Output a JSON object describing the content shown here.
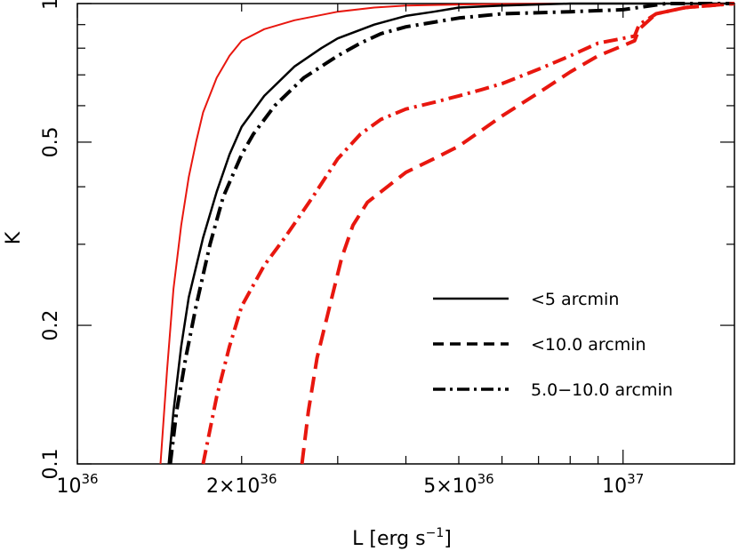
{
  "chart_data": {
    "type": "line",
    "xlabel_base": "L [erg s",
    "xlabel_exp": "−1",
    "xlabel_close": "]",
    "ylabel": "K",
    "xscale": "log",
    "yscale": "log",
    "xlim": [
      1e+36,
      1.6e+37
    ],
    "ylim": [
      0.1,
      1.0
    ],
    "grid": false,
    "legend_position": "lower-right",
    "x_ticks": [
      {
        "value": 1e+36,
        "mant": "10",
        "exp": "36"
      },
      {
        "value": 2e+36,
        "mant": "2×10",
        "exp": "36"
      },
      {
        "value": 5e+36,
        "mant": "5×10",
        "exp": "36"
      },
      {
        "value": 1e+37,
        "mant": "10",
        "exp": "37"
      }
    ],
    "y_ticks": [
      {
        "value": 0.1,
        "label": "0.1"
      },
      {
        "value": 0.2,
        "label": "0.2"
      },
      {
        "value": 0.5,
        "label": "0.5"
      },
      {
        "value": 1.0,
        "label": "1"
      }
    ],
    "legend": [
      {
        "label": "<5 arcmin",
        "dash": "solid"
      },
      {
        "label": "<10.0 arcmin",
        "dash": "dashed"
      },
      {
        "label": "5.0−10.0 arcmin",
        "dash": "dashdot"
      }
    ],
    "series": [
      {
        "color": "#e8170f",
        "dash": "solid",
        "width": 2,
        "x": [
          1.42e+36,
          1.46e+36,
          1.5e+36,
          1.55e+36,
          1.6e+36,
          1.65e+36,
          1.7e+36,
          1.8e+36,
          1.9e+36,
          2e+36,
          2.2e+36,
          2.5e+36,
          3e+36,
          3.5e+36,
          4e+36,
          5e+36,
          6e+36,
          8e+36,
          1e+37,
          1.6e+37
        ],
        "y": [
          0.1,
          0.16,
          0.24,
          0.33,
          0.42,
          0.5,
          0.58,
          0.69,
          0.77,
          0.83,
          0.88,
          0.92,
          0.96,
          0.98,
          0.99,
          0.995,
          0.998,
          1.0,
          1.0,
          1.0
        ]
      },
      {
        "color": "#000000",
        "dash": "solid",
        "width": 2.5,
        "x": [
          1.47e+36,
          1.5e+36,
          1.55e+36,
          1.6e+36,
          1.7e+36,
          1.8e+36,
          1.9e+36,
          2e+36,
          2.2e+36,
          2.5e+36,
          2.8e+36,
          3e+36,
          3.5e+36,
          4e+36,
          4.5e+36,
          5e+36,
          6e+36,
          8e+36,
          1e+37,
          1.6e+37
        ],
        "y": [
          0.1,
          0.13,
          0.18,
          0.23,
          0.31,
          0.39,
          0.47,
          0.54,
          0.63,
          0.73,
          0.8,
          0.84,
          0.9,
          0.94,
          0.96,
          0.98,
          0.99,
          1.0,
          1.0,
          1.0
        ]
      },
      {
        "color": "#000000",
        "dash": "dashdot",
        "width": 4,
        "x": [
          1.48e+36,
          1.52e+36,
          1.58e+36,
          1.65e+36,
          1.75e+36,
          1.85e+36,
          2e+36,
          2.1e+36,
          2.3e+36,
          2.6e+36,
          3e+36,
          3.3e+36,
          3.6e+36,
          4e+36,
          5e+36,
          6e+36,
          8e+36,
          1e+37,
          1.2e+37,
          1.6e+37
        ],
        "y": [
          0.1,
          0.13,
          0.17,
          0.22,
          0.3,
          0.38,
          0.47,
          0.52,
          0.6,
          0.69,
          0.77,
          0.82,
          0.86,
          0.89,
          0.93,
          0.95,
          0.96,
          0.97,
          1.0,
          1.0
        ]
      },
      {
        "color": "#e8170f",
        "dash": "dashdot",
        "width": 4,
        "x": [
          1.7e+36,
          1.8e+36,
          1.9e+36,
          2e+36,
          2.2e+36,
          2.4e+36,
          2.7e+36,
          3e+36,
          3.3e+36,
          3.6e+36,
          4e+36,
          4.5e+36,
          5e+36,
          5.5e+36,
          6e+36,
          7e+36,
          8e+36,
          9e+36,
          1.05e+37,
          1.07e+37,
          1.15e+37,
          1.3e+37,
          1.6e+37
        ],
        "y": [
          0.1,
          0.14,
          0.18,
          0.22,
          0.27,
          0.31,
          0.38,
          0.46,
          0.52,
          0.56,
          0.59,
          0.61,
          0.63,
          0.65,
          0.67,
          0.72,
          0.77,
          0.82,
          0.85,
          0.9,
          0.95,
          0.98,
          1.0
        ]
      },
      {
        "color": "#e8170f",
        "dash": "dashed",
        "width": 4,
        "x": [
          2.58e+36,
          2.65e+36,
          2.75e+36,
          2.9e+36,
          3.05e+36,
          3.2e+36,
          3.4e+36,
          3.6e+36,
          4e+36,
          4.5e+36,
          5e+36,
          5.5e+36,
          6e+36,
          7e+36,
          8e+36,
          9e+36,
          1e+37,
          1.05e+37,
          1.07e+37,
          1.15e+37,
          1.3e+37,
          1.6e+37
        ],
        "y": [
          0.1,
          0.13,
          0.17,
          0.22,
          0.28,
          0.33,
          0.37,
          0.39,
          0.43,
          0.46,
          0.49,
          0.53,
          0.57,
          0.64,
          0.71,
          0.77,
          0.81,
          0.83,
          0.88,
          0.95,
          0.98,
          1.0
        ]
      }
    ]
  }
}
